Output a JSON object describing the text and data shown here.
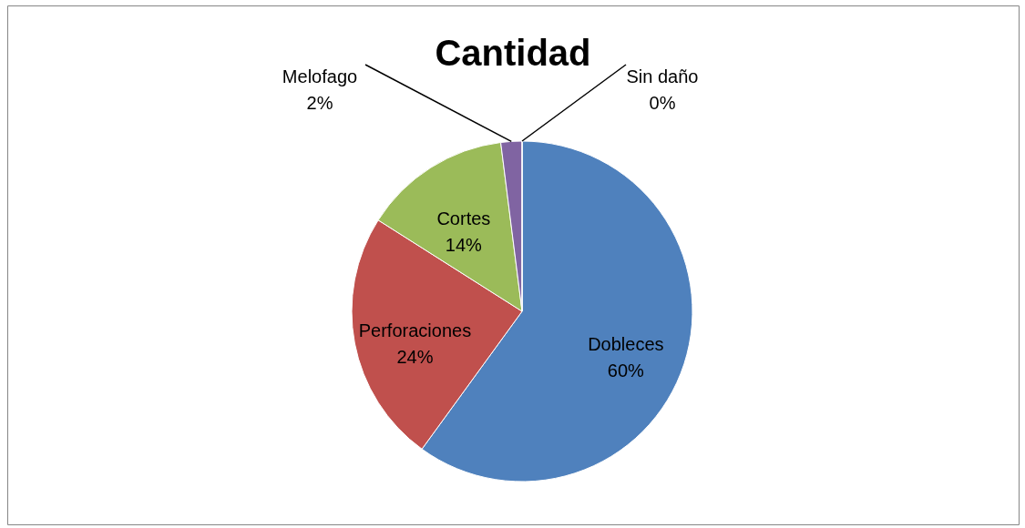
{
  "chart_data": {
    "type": "pie",
    "title": "Cantidad",
    "categories": [
      "Dobleces",
      "Perforaciones",
      "Cortes",
      "Melofago",
      "Sin daño"
    ],
    "values": [
      60,
      24,
      14,
      2,
      0
    ],
    "value_labels": [
      "60%",
      "24%",
      "14%",
      "2%",
      "0%"
    ],
    "colors": [
      "#4f81bd",
      "#c0504d",
      "#9bbb59",
      "#8064a2",
      "#4bacc6"
    ],
    "legend": false
  }
}
